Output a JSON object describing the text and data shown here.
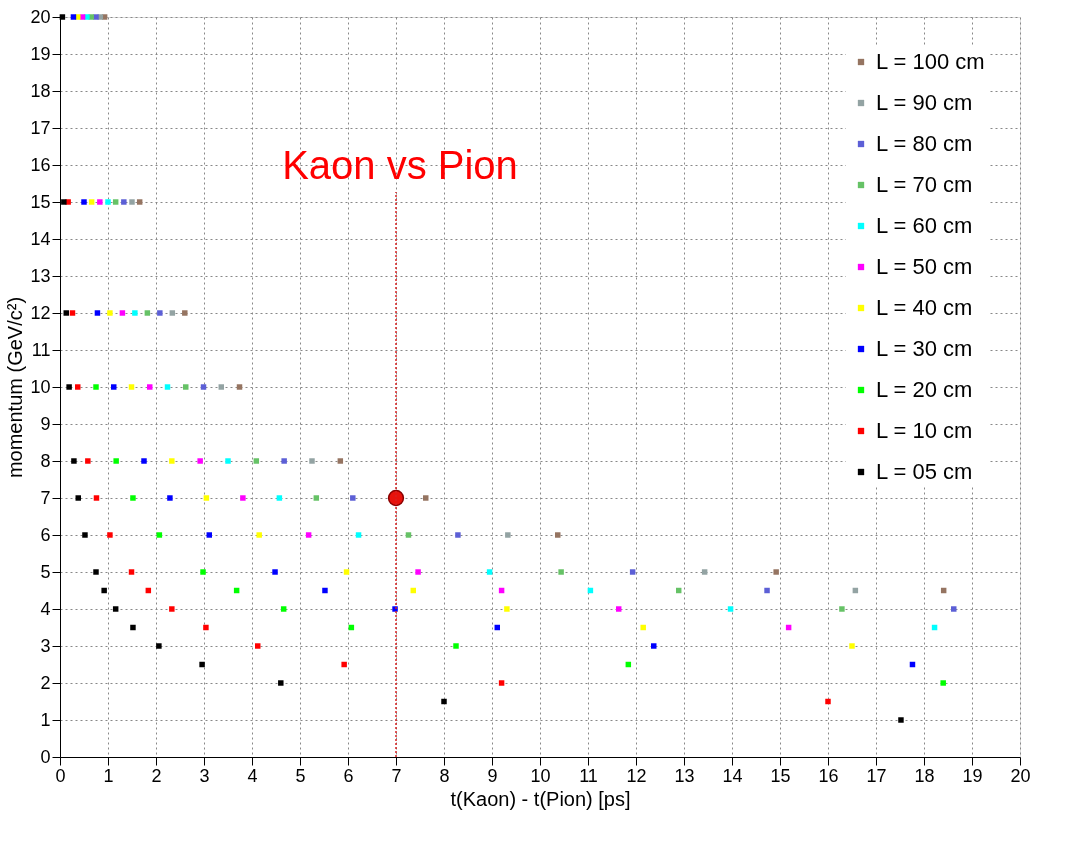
{
  "chart_data": {
    "type": "scatter",
    "xlabel": "t(Kaon) - t(Pion) [ps]",
    "ylabel": "momentum (GeV/c²)",
    "xlim": [
      0,
      20
    ],
    "ylim": [
      0,
      20
    ],
    "xticks": [
      0,
      1,
      2,
      3,
      4,
      5,
      6,
      7,
      8,
      9,
      10,
      11,
      12,
      13,
      14,
      15,
      16,
      17,
      18,
      19,
      20
    ],
    "yticks": [
      0,
      1,
      2,
      3,
      4,
      5,
      6,
      7,
      8,
      9,
      10,
      11,
      12,
      13,
      14,
      15,
      16,
      17,
      18,
      19,
      20
    ],
    "grid": true,
    "legend": "top right",
    "marker": "square",
    "annotations": [
      "Kaon vs Pion"
    ],
    "ref_lines": [
      {
        "axis": "x",
        "value": 7,
        "label": null,
        "color": "#d62020",
        "line_style": "dotted"
      }
    ],
    "series": [
      {
        "name": "L = 100 cm",
        "color": "#957461",
        "x": [
          0.93,
          1.66,
          2.6,
          3.74,
          5.84,
          7.62,
          10.37,
          14.92,
          18.41
        ],
        "values": [
          20,
          15,
          12,
          10,
          8,
          7,
          6,
          5,
          4.5
        ]
      },
      {
        "name": "L = 90 cm",
        "color": "#93a3a3",
        "x": [
          0.84,
          1.5,
          2.34,
          3.36,
          5.25,
          6.86,
          9.33,
          13.43,
          16.57
        ],
        "values": [
          20,
          15,
          12,
          10,
          8,
          null,
          6,
          5,
          4.5
        ]
      },
      {
        "name": "L = 80 cm",
        "color": "#5c5fd6",
        "x": [
          0.75,
          1.33,
          2.08,
          2.99,
          4.67,
          6.1,
          8.29,
          11.93,
          14.73,
          18.62
        ],
        "values": [
          20,
          15,
          12,
          10,
          8,
          7,
          6,
          5,
          4.5,
          4
        ]
      },
      {
        "name": "L = 70 cm",
        "color": "#66c266",
        "x": [
          0.65,
          1.16,
          1.82,
          2.62,
          4.09,
          5.34,
          7.26,
          10.44,
          12.89,
          16.29
        ],
        "values": [
          20,
          15,
          12,
          10,
          8,
          7,
          6,
          5,
          4.5,
          4
        ]
      },
      {
        "name": "L = 60 cm",
        "color": "#00ffff",
        "x": [
          0.56,
          1.0,
          1.56,
          2.24,
          3.5,
          4.57,
          6.22,
          8.95,
          11.05,
          13.97,
          18.22
        ],
        "values": [
          20,
          15,
          12,
          10,
          8,
          7,
          6,
          5,
          4.5,
          4,
          3.5
        ]
      },
      {
        "name": "L = 50 cm",
        "color": "#ff00ff",
        "x": [
          0.47,
          0.83,
          1.3,
          1.87,
          2.92,
          3.81,
          5.18,
          7.46,
          9.2,
          11.64,
          15.18
        ],
        "values": [
          20,
          15,
          12,
          10,
          8,
          7,
          6,
          5,
          4.5,
          4,
          3.5
        ]
      },
      {
        "name": "L = 40 cm",
        "color": "#ffff00",
        "x": [
          0.37,
          0.66,
          1.04,
          1.49,
          2.33,
          3.05,
          4.15,
          5.97,
          7.36,
          9.31,
          12.15,
          16.5
        ],
        "values": [
          20,
          15,
          12,
          10,
          8,
          7,
          6,
          5,
          4.5,
          4,
          3.5,
          3
        ]
      },
      {
        "name": "L = 30 cm",
        "color": "#0000ff",
        "x": [
          0.28,
          0.5,
          0.78,
          1.12,
          1.75,
          2.29,
          3.11,
          4.48,
          5.52,
          6.98,
          9.11,
          12.37,
          17.76
        ],
        "values": [
          20,
          15,
          12,
          10,
          8,
          7,
          6,
          5,
          4.5,
          4,
          3.5,
          3,
          2.5
        ]
      },
      {
        "name": "L = 20 cm",
        "color": "#00ff00",
        "x": [
          0.75,
          1.17,
          1.52,
          2.07,
          2.98,
          3.68,
          4.66,
          6.07,
          8.25,
          11.84,
          18.4
        ],
        "values": [
          10,
          8,
          7,
          6,
          5,
          4.5,
          4,
          3.5,
          3,
          2.5,
          2
        ]
      },
      {
        "name": "L = 10 cm",
        "color": "#ff0000",
        "x": [
          0.17,
          0.26,
          0.37,
          0.58,
          0.76,
          1.04,
          1.49,
          1.84,
          2.33,
          3.04,
          4.12,
          5.92,
          9.2,
          16.0
        ],
        "values": [
          15,
          12,
          10,
          8,
          7,
          6,
          5,
          4.5,
          4,
          3.5,
          3,
          2.5,
          2,
          1.5
        ]
      },
      {
        "name": "L = 05 cm",
        "color": "#000000",
        "x": [
          0.05,
          0.08,
          0.13,
          0.19,
          0.29,
          0.38,
          0.52,
          0.75,
          0.92,
          1.16,
          1.52,
          2.06,
          2.96,
          4.6,
          8.0,
          17.52
        ],
        "values": [
          20,
          15,
          12,
          10,
          8,
          7,
          6,
          5,
          4.5,
          4,
          3.5,
          3,
          2.5,
          2,
          1.5,
          1
        ]
      },
      {
        "color": "#e8120c",
        "x": [
          7
        ],
        "values": [
          7
        ],
        "marker": "circle"
      }
    ]
  }
}
